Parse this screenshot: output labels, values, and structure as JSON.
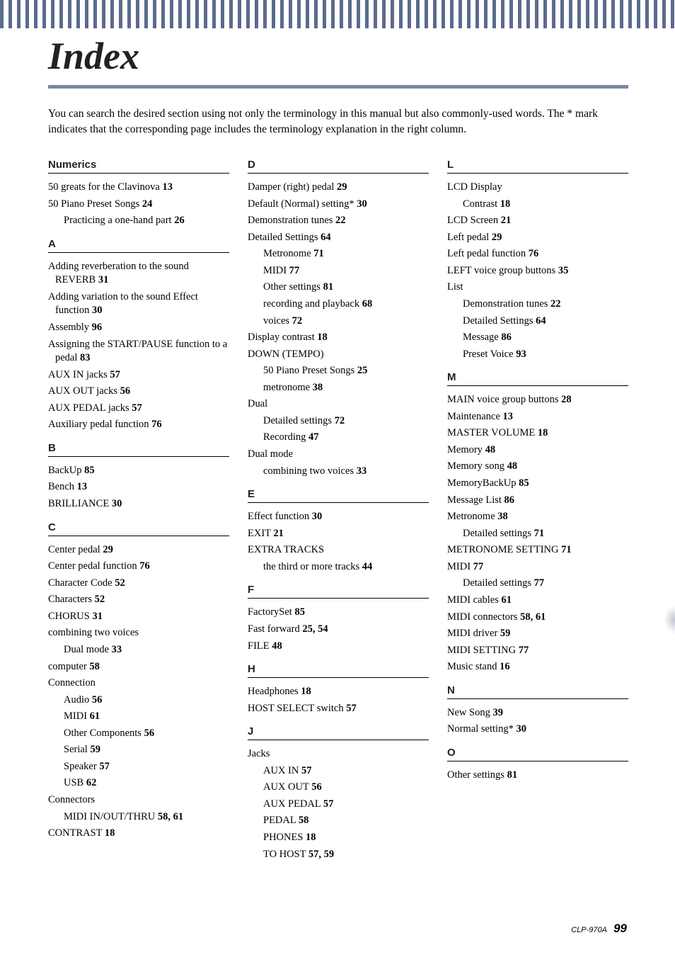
{
  "title": "Index",
  "intro": "You can search the desired section using not only the terminology in this manual but also commonly-used words. The * mark indicates that the corresponding page includes the terminology explanation in the right column.",
  "columns": [
    {
      "sections": [
        {
          "letter": "Numerics",
          "entries": [
            {
              "text": "50 greats for the Clavinova",
              "page": "13"
            },
            {
              "text": "50 Piano Preset Songs",
              "page": "24"
            },
            {
              "text": "Practicing a one-hand part",
              "page": "26",
              "sub": true
            }
          ]
        },
        {
          "letter": "A",
          "entries": [
            {
              "text": "Adding reverberation to the sound REVERB",
              "page": "31"
            },
            {
              "text": "Adding variation to the sound Effect function",
              "page": "30"
            },
            {
              "text": "Assembly",
              "page": "96"
            },
            {
              "text": "Assigning the START/PAUSE function to a pedal",
              "page": "83"
            },
            {
              "text": "AUX IN jacks",
              "page": "57"
            },
            {
              "text": "AUX OUT jacks",
              "page": "56"
            },
            {
              "text": "AUX PEDAL jacks",
              "page": "57"
            },
            {
              "text": "Auxiliary pedal function",
              "page": "76"
            }
          ]
        },
        {
          "letter": "B",
          "entries": [
            {
              "text": "BackUp",
              "page": "85"
            },
            {
              "text": "Bench",
              "page": "13"
            },
            {
              "text": "BRILLIANCE",
              "page": "30"
            }
          ]
        },
        {
          "letter": "C",
          "entries": [
            {
              "text": "Center pedal",
              "page": "29"
            },
            {
              "text": "Center pedal function",
              "page": "76"
            },
            {
              "text": "Character Code",
              "page": "52"
            },
            {
              "text": "Characters",
              "page": "52"
            },
            {
              "text": "CHORUS",
              "page": "31"
            },
            {
              "text": "combining two voices",
              "nopage": true
            },
            {
              "text": "Dual mode",
              "page": "33",
              "sub": true
            },
            {
              "text": "computer",
              "page": "58"
            },
            {
              "text": "Connection",
              "nopage": true
            },
            {
              "text": "Audio",
              "page": "56",
              "sub": true
            },
            {
              "text": "MIDI",
              "page": "61",
              "sub": true
            },
            {
              "text": "Other Components",
              "page": "56",
              "sub": true
            },
            {
              "text": "Serial",
              "page": "59",
              "sub": true
            },
            {
              "text": "Speaker",
              "page": "57",
              "sub": true
            },
            {
              "text": "USB",
              "page": "62",
              "sub": true
            },
            {
              "text": "Connectors",
              "nopage": true
            },
            {
              "text": "MIDI IN/OUT/THRU",
              "page": "58,  61",
              "sub": true
            },
            {
              "text": "CONTRAST",
              "page": "18"
            }
          ]
        }
      ]
    },
    {
      "sections": [
        {
          "letter": "D",
          "entries": [
            {
              "text": "Damper (right) pedal",
              "page": "29"
            },
            {
              "text": "Default (Normal) setting*",
              "page": "30"
            },
            {
              "text": "Demonstration tunes",
              "page": "22"
            },
            {
              "text": "Detailed Settings",
              "page": "64"
            },
            {
              "text": "Metronome",
              "page": "71",
              "sub": true
            },
            {
              "text": "MIDI",
              "page": "77",
              "sub": true
            },
            {
              "text": "Other settings",
              "page": "81",
              "sub": true
            },
            {
              "text": "recording and playback",
              "page": "68",
              "sub": true
            },
            {
              "text": "voices",
              "page": "72",
              "sub": true
            },
            {
              "text": "Display contrast",
              "page": "18"
            },
            {
              "text": "DOWN (TEMPO)",
              "nopage": true
            },
            {
              "text": "50 Piano Preset Songs",
              "page": "25",
              "sub": true
            },
            {
              "text": "metronome",
              "page": "38",
              "sub": true
            },
            {
              "text": "Dual",
              "nopage": true
            },
            {
              "text": "Detailed settings",
              "page": "72",
              "sub": true
            },
            {
              "text": "Recording",
              "page": "47",
              "sub": true
            },
            {
              "text": "Dual mode",
              "nopage": true
            },
            {
              "text": "combining two voices",
              "page": "33",
              "sub": true
            }
          ]
        },
        {
          "letter": "E",
          "entries": [
            {
              "text": "Effect function",
              "page": "30"
            },
            {
              "text": "EXIT",
              "page": "21"
            },
            {
              "text": "EXTRA TRACKS",
              "nopage": true
            },
            {
              "text": "the third or more tracks",
              "page": "44",
              "sub": true
            }
          ]
        },
        {
          "letter": "F",
          "entries": [
            {
              "text": "FactorySet",
              "page": "85"
            },
            {
              "text": "Fast forward",
              "page": "25,  54"
            },
            {
              "text": "FILE",
              "page": "48"
            }
          ]
        },
        {
          "letter": "H",
          "entries": [
            {
              "text": "Headphones",
              "page": "18"
            },
            {
              "text": "HOST SELECT switch",
              "page": "57"
            }
          ]
        },
        {
          "letter": "J",
          "entries": [
            {
              "text": "Jacks",
              "nopage": true
            },
            {
              "text": "AUX IN",
              "page": "57",
              "sub": true
            },
            {
              "text": "AUX OUT",
              "page": "56",
              "sub": true
            },
            {
              "text": "AUX PEDAL",
              "page": "57",
              "sub": true
            },
            {
              "text": "PEDAL",
              "page": "58",
              "sub": true
            },
            {
              "text": "PHONES",
              "page": "18",
              "sub": true
            },
            {
              "text": "TO HOST",
              "page": "57,  59",
              "sub": true
            }
          ]
        }
      ]
    },
    {
      "sections": [
        {
          "letter": "L",
          "entries": [
            {
              "text": "LCD      Display",
              "nopage": true
            },
            {
              "text": "Contrast",
              "page": "18",
              "sub": true
            },
            {
              "text": "LCD       Screen",
              "page": "21"
            },
            {
              "text": "Left pedal",
              "page": "29"
            },
            {
              "text": "Left pedal function",
              "page": "76"
            },
            {
              "text": "LEFT voice group buttons",
              "page": "35"
            },
            {
              "text": "List",
              "nopage": true
            },
            {
              "text": "Demonstration tunes",
              "page": "22",
              "sub": true
            },
            {
              "text": "Detailed Settings",
              "page": "64",
              "sub": true
            },
            {
              "text": "Message",
              "page": "86",
              "sub": true
            },
            {
              "text": "Preset Voice",
              "page": "93",
              "sub": true
            }
          ]
        },
        {
          "letter": "M",
          "entries": [
            {
              "text": "MAIN voice group buttons",
              "page": "28"
            },
            {
              "text": "Maintenance",
              "page": "13"
            },
            {
              "text": "MASTER VOLUME",
              "page": "18"
            },
            {
              "text": "Memory",
              "page": "48"
            },
            {
              "text": "Memory song",
              "page": "48"
            },
            {
              "text": "MemoryBackUp",
              "page": "85"
            },
            {
              "text": "Message List",
              "page": "86"
            },
            {
              "text": "Metronome",
              "page": "38"
            },
            {
              "text": "Detailed settings",
              "page": "71",
              "sub": true
            },
            {
              "text": "METRONOME SETTING",
              "page": "71"
            },
            {
              "text": "MIDI",
              "page": "77"
            },
            {
              "text": "Detailed settings",
              "page": "77",
              "sub": true
            },
            {
              "text": "MIDI cables",
              "page": "61"
            },
            {
              "text": "MIDI connectors",
              "page": "58,  61"
            },
            {
              "text": "MIDI driver",
              "page": "59"
            },
            {
              "text": "MIDI SETTING",
              "page": "77"
            },
            {
              "text": "Music stand",
              "page": "16"
            }
          ]
        },
        {
          "letter": "N",
          "entries": [
            {
              "text": "New Song",
              "page": "39"
            },
            {
              "text": "Normal setting*",
              "page": "30"
            }
          ]
        },
        {
          "letter": "O",
          "entries": [
            {
              "text": "Other settings",
              "page": "81"
            }
          ]
        }
      ]
    }
  ],
  "footer_model": "CLP-970A",
  "footer_page": "99"
}
